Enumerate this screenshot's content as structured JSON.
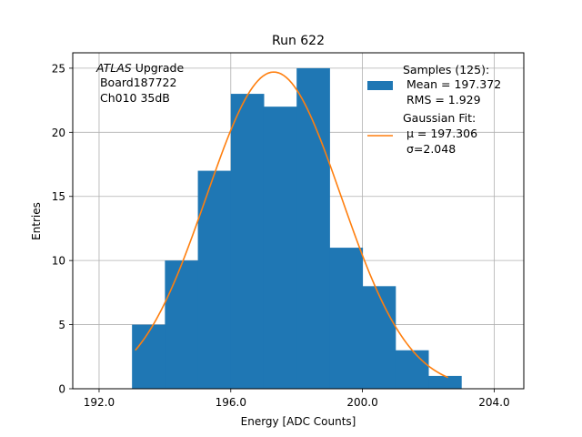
{
  "chart_data": {
    "type": "bar",
    "title": "Run 622",
    "xlabel": "Energy [ADC Counts]",
    "ylabel": "Entries",
    "xlim": [
      191.2,
      204.9
    ],
    "ylim": [
      0,
      26.2
    ],
    "xticks": [
      192,
      196,
      200,
      204
    ],
    "xtick_labels": [
      "192.0",
      "196.0",
      "200.0",
      "204.0"
    ],
    "yticks": [
      0,
      5,
      10,
      15,
      20,
      25
    ],
    "ytick_labels": [
      "0",
      "5",
      "10",
      "15",
      "20",
      "25"
    ],
    "grid": true,
    "histogram": {
      "bin_edges": [
        193,
        194,
        195,
        196,
        197,
        198,
        199,
        200,
        201,
        202,
        203
      ],
      "counts": [
        5,
        10,
        17,
        23,
        22,
        25,
        11,
        8,
        3,
        1
      ],
      "color": "#1f77b4"
    },
    "fit_curve": {
      "x_range": [
        193.1,
        202.6
      ],
      "mu": 197.306,
      "sigma": 2.048,
      "amplitude": 24.7,
      "color": "#ff7f0e"
    },
    "annotation": {
      "line1_italic": "ATLAS",
      "line1_rest": " Upgrade",
      "line2": " Board187722",
      "line3": " Ch010 35dB"
    },
    "legend": {
      "position": "top-right",
      "samples": {
        "line1": "Samples (125):",
        "line2": " Mean = 197.372",
        "line3": " RMS = 1.929"
      },
      "fit": {
        "line1": "Gaussian Fit:",
        "line2": " μ = 197.306",
        "line3": " σ=2.048"
      }
    }
  }
}
